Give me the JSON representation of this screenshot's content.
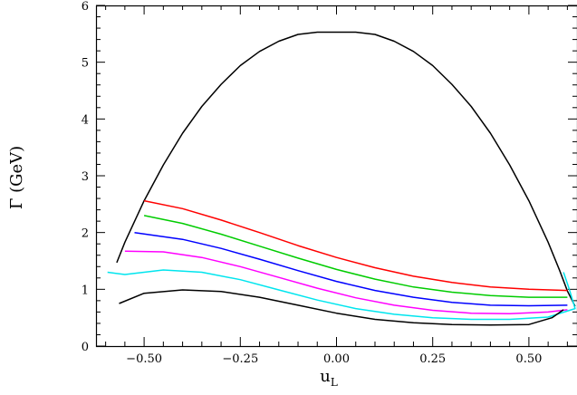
{
  "chart_data": {
    "type": "line",
    "xlabel": "u",
    "xlabel_sub": "L",
    "ylabel": "Γ (GeV)",
    "xlim": [
      -0.625,
      0.625
    ],
    "ylim": [
      0,
      6
    ],
    "x_ticks": [
      "−0.50",
      "−0.25",
      "0.00",
      "0.25",
      "0.50"
    ],
    "x_tick_values": [
      -0.5,
      -0.25,
      0.0,
      0.25,
      0.5
    ],
    "y_ticks": [
      "0",
      "1",
      "2",
      "3",
      "4",
      "5",
      "6"
    ],
    "y_tick_values": [
      0,
      1,
      2,
      3,
      4,
      5,
      6
    ],
    "grid": false,
    "series": [
      {
        "color": "#000000",
        "points": [
          [
            -0.571,
            1.47
          ],
          [
            -0.55,
            1.83
          ],
          [
            -0.5,
            2.56
          ],
          [
            -0.45,
            3.19
          ],
          [
            -0.4,
            3.75
          ],
          [
            -0.35,
            4.22
          ],
          [
            -0.3,
            4.61
          ],
          [
            -0.25,
            4.94
          ],
          [
            -0.2,
            5.19
          ],
          [
            -0.15,
            5.37
          ],
          [
            -0.1,
            5.49
          ],
          [
            -0.05,
            5.53
          ],
          [
            0.0,
            5.53
          ],
          [
            0.05,
            5.53
          ],
          [
            0.1,
            5.49
          ],
          [
            0.15,
            5.37
          ],
          [
            0.2,
            5.19
          ],
          [
            0.25,
            4.94
          ],
          [
            0.3,
            4.61
          ],
          [
            0.35,
            4.22
          ],
          [
            0.4,
            3.75
          ],
          [
            0.45,
            3.19
          ],
          [
            0.5,
            2.56
          ],
          [
            0.55,
            1.83
          ],
          [
            0.58,
            1.33
          ],
          [
            0.6,
            0.97
          ],
          [
            0.62,
            0.7
          ]
        ]
      },
      {
        "color": "#ff0000",
        "points": [
          [
            -0.5,
            2.56
          ],
          [
            -0.4,
            2.42
          ],
          [
            -0.3,
            2.22
          ],
          [
            -0.2,
            2.0
          ],
          [
            -0.1,
            1.77
          ],
          [
            0.0,
            1.56
          ],
          [
            0.1,
            1.38
          ],
          [
            0.2,
            1.23
          ],
          [
            0.3,
            1.12
          ],
          [
            0.4,
            1.04
          ],
          [
            0.5,
            1.0
          ],
          [
            0.6,
            0.98
          ]
        ]
      },
      {
        "color": "#00cc00",
        "points": [
          [
            -0.5,
            2.3
          ],
          [
            -0.4,
            2.16
          ],
          [
            -0.3,
            1.97
          ],
          [
            -0.2,
            1.76
          ],
          [
            -0.1,
            1.55
          ],
          [
            0.0,
            1.35
          ],
          [
            0.1,
            1.18
          ],
          [
            0.2,
            1.04
          ],
          [
            0.3,
            0.95
          ],
          [
            0.4,
            0.89
          ],
          [
            0.5,
            0.86
          ],
          [
            0.6,
            0.86
          ]
        ]
      },
      {
        "color": "#0000ff",
        "points": [
          [
            -0.525,
            2.0
          ],
          [
            -0.4,
            1.88
          ],
          [
            -0.3,
            1.72
          ],
          [
            -0.2,
            1.53
          ],
          [
            -0.1,
            1.33
          ],
          [
            0.0,
            1.14
          ],
          [
            0.1,
            0.98
          ],
          [
            0.2,
            0.86
          ],
          [
            0.3,
            0.77
          ],
          [
            0.4,
            0.72
          ],
          [
            0.5,
            0.71
          ],
          [
            0.6,
            0.72
          ]
        ]
      },
      {
        "color": "#ff00ff",
        "points": [
          [
            -0.55,
            1.67
          ],
          [
            -0.45,
            1.66
          ],
          [
            -0.35,
            1.56
          ],
          [
            -0.25,
            1.4
          ],
          [
            -0.15,
            1.21
          ],
          [
            -0.05,
            1.02
          ],
          [
            0.05,
            0.85
          ],
          [
            0.15,
            0.72
          ],
          [
            0.25,
            0.63
          ],
          [
            0.35,
            0.58
          ],
          [
            0.45,
            0.57
          ],
          [
            0.55,
            0.6
          ],
          [
            0.6,
            0.64
          ]
        ]
      },
      {
        "color": "#00e5ee",
        "points": [
          [
            -0.595,
            1.3
          ],
          [
            -0.55,
            1.26
          ],
          [
            -0.45,
            1.34
          ],
          [
            -0.35,
            1.3
          ],
          [
            -0.25,
            1.17
          ],
          [
            -0.15,
            0.99
          ],
          [
            -0.05,
            0.81
          ],
          [
            0.05,
            0.66
          ],
          [
            0.15,
            0.56
          ],
          [
            0.25,
            0.5
          ],
          [
            0.35,
            0.47
          ],
          [
            0.45,
            0.47
          ],
          [
            0.55,
            0.51
          ],
          [
            0.62,
            0.66
          ],
          [
            0.605,
            1.0
          ],
          [
            0.59,
            1.3
          ]
        ]
      },
      {
        "color": "#000000",
        "points": [
          [
            -0.565,
            0.75
          ],
          [
            -0.5,
            0.93
          ],
          [
            -0.4,
            0.99
          ],
          [
            -0.3,
            0.96
          ],
          [
            -0.2,
            0.86
          ],
          [
            -0.1,
            0.72
          ],
          [
            0.0,
            0.58
          ],
          [
            0.1,
            0.47
          ],
          [
            0.2,
            0.41
          ],
          [
            0.3,
            0.38
          ],
          [
            0.4,
            0.37
          ],
          [
            0.5,
            0.38
          ],
          [
            0.56,
            0.5
          ],
          [
            0.59,
            0.64
          ]
        ]
      }
    ]
  }
}
